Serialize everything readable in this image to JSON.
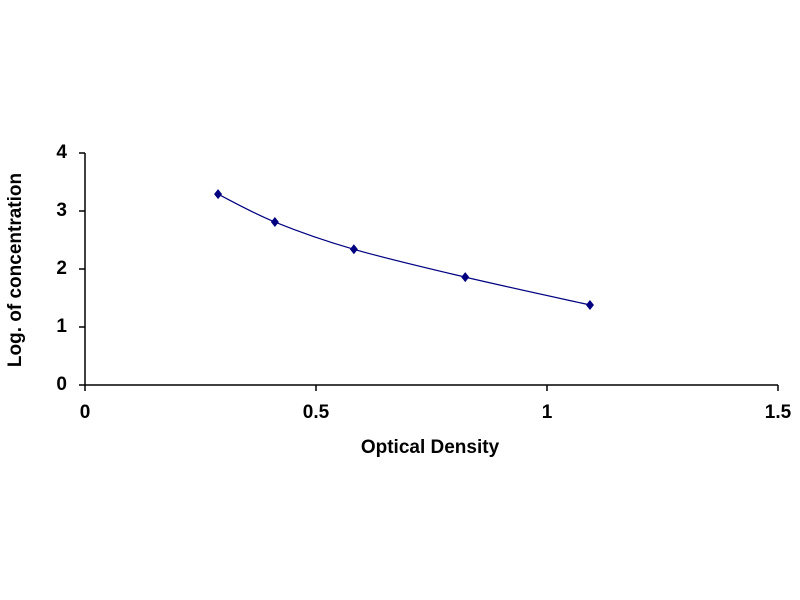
{
  "chart_data": {
    "type": "scatter",
    "x_label": "Optical Density",
    "y_label": "Log. of concentration",
    "x": [
      0.288,
      0.411,
      0.582,
      0.823,
      1.093
    ],
    "series": [
      {
        "color": "#000080",
        "values": [
          3.29,
          2.81,
          2.34,
          1.86,
          1.38
        ]
      }
    ],
    "xlim": [
      0,
      1.5
    ],
    "xticks": [
      0,
      0.5,
      1,
      1.5
    ],
    "ylim": [
      0,
      4
    ],
    "yticks": [
      0,
      1,
      2,
      3,
      4
    ],
    "grid": false,
    "smooth": true
  }
}
